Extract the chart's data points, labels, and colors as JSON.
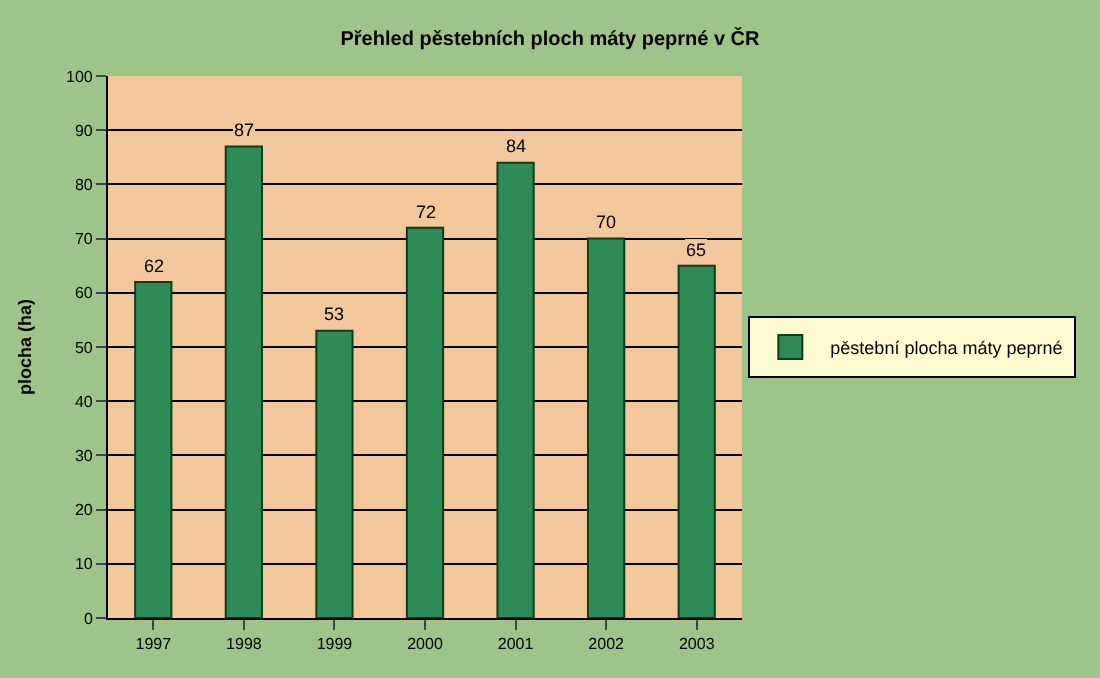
{
  "chart_data": {
    "type": "bar",
    "title": "Přehled pěstebních ploch máty peprné v ČR",
    "ylabel": "plocha (ha)",
    "categories": [
      "1997",
      "1998",
      "1999",
      "2000",
      "2001",
      "2002",
      "2003"
    ],
    "series": [
      {
        "name": "pěstební plocha máty peprné",
        "color": "#2e8b57",
        "values": [
          62,
          87,
          53,
          72,
          84,
          70,
          65
        ]
      }
    ],
    "ylim": [
      0,
      100
    ],
    "yticks": [
      0,
      10,
      20,
      30,
      40,
      50,
      60,
      70,
      80,
      90,
      100
    ],
    "grid": "y",
    "legend": "right",
    "data_labels": true
  }
}
